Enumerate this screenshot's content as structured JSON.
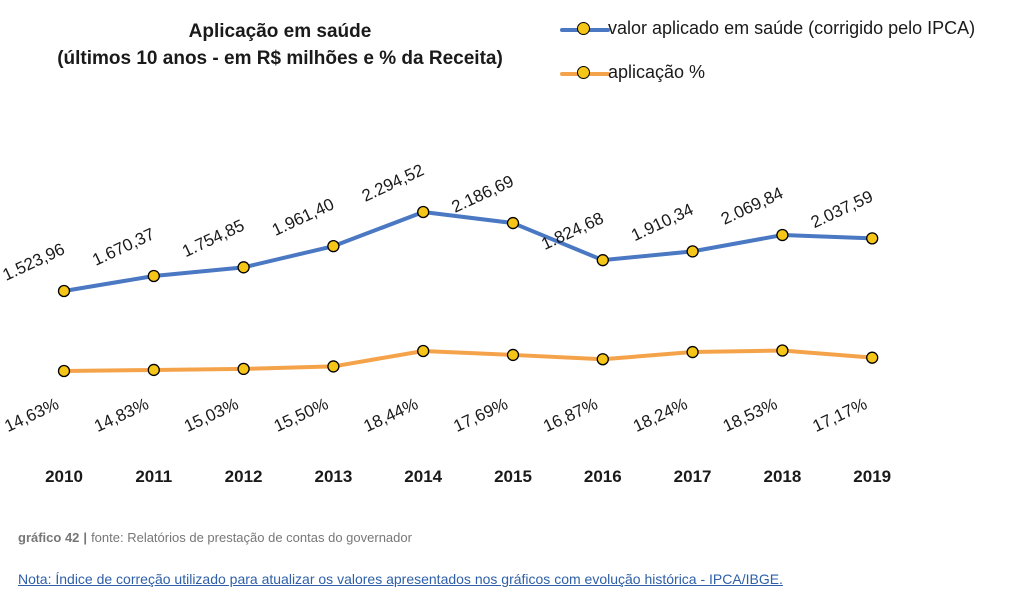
{
  "title_line1": "Aplicação em saúde",
  "title_line2": "(últimos 10 anos - em R$ milhões e % da Receita)",
  "legend": [
    {
      "label": "valor aplicado em saúde (corrigido pelo IPCA)",
      "color": "#4a78c2"
    },
    {
      "label": "aplicação %",
      "color": "#f5a34a"
    }
  ],
  "chart_data": {
    "type": "line",
    "x": [
      "2010",
      "2011",
      "2012",
      "2013",
      "2014",
      "2015",
      "2016",
      "2017",
      "2018",
      "2019"
    ],
    "series": [
      {
        "name": "valor aplicado em saúde (corrigido pelo IPCA)",
        "values": [
          1523.96,
          1670.37,
          1754.85,
          1961.4,
          2294.52,
          2186.69,
          1824.68,
          1910.34,
          2069.84,
          2037.59
        ],
        "labels": [
          "1.523,96",
          "1.670,37",
          "1.754,85",
          "1.961,40",
          "2.294,52",
          "2.186,69",
          "1.824,68",
          "1.910,34",
          "2.069,84",
          "2.037,59"
        ],
        "color": "#4a78c2",
        "marker_color": "#f5c518"
      },
      {
        "name": "aplicação %",
        "values": [
          14.63,
          14.83,
          15.03,
          15.5,
          18.44,
          17.69,
          16.87,
          18.24,
          18.53,
          17.17
        ],
        "labels": [
          "14,63%",
          "14,83%",
          "15,03%",
          "15,50%",
          "18,44%",
          "17,69%",
          "16,87%",
          "18,24%",
          "18,53%",
          "17,17%"
        ],
        "color": "#f5a34a",
        "marker_color": "#f5c518"
      }
    ],
    "grid": false,
    "legend_position": "top-right"
  },
  "source": {
    "label": "gráfico 42",
    "separator": "|",
    "text": "fonte: Relatórios de prestação de contas do governador"
  },
  "note": "Nota: Índice de correção utilizado para atualizar os valores apresentados nos gráficos com evolução histórica - IPCA/IBGE."
}
